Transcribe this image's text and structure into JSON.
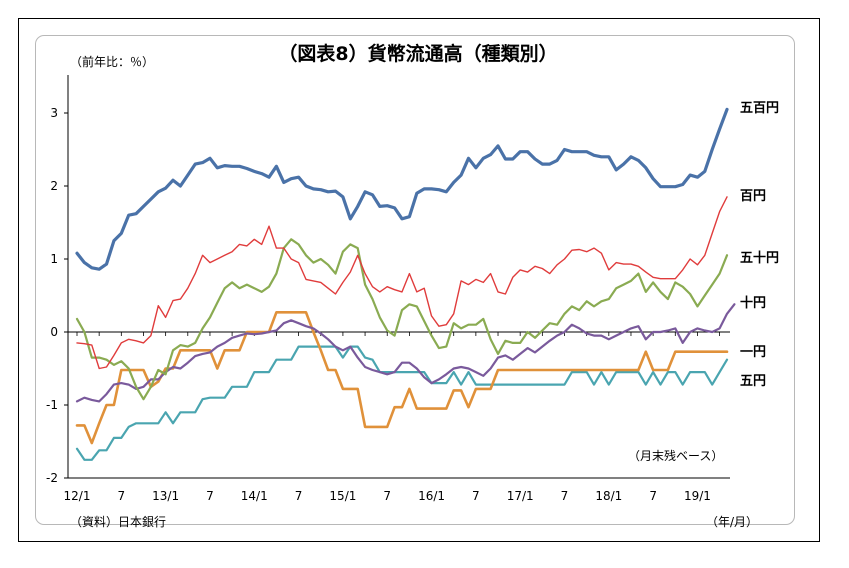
{
  "chart_data": {
    "type": "line",
    "title": "（図表8）貨幣流通高（種類別）",
    "ylabel": "（前年比：％）",
    "xlabel": "（年/月）",
    "note": "（月末残ベース）",
    "source": "（資料）日本銀行",
    "ylim": [
      -2,
      3.5
    ],
    "yticks": [
      "3",
      "2",
      "1",
      "0",
      "-1",
      "-2"
    ],
    "ytick_values": [
      3,
      2,
      1,
      0,
      -1,
      -2
    ],
    "xtick_labels": [
      "12/1",
      "7",
      "13/1",
      "7",
      "14/1",
      "7",
      "15/1",
      "7",
      "16/1",
      "7",
      "17/1",
      "7",
      "18/1",
      "7",
      "19/1"
    ],
    "xtick_months": [
      0,
      6,
      12,
      18,
      24,
      30,
      36,
      42,
      48,
      54,
      60,
      66,
      72,
      78,
      84
    ],
    "months": "2012/1 - 2019/3",
    "grid": false,
    "series": [
      {
        "name": "五百円",
        "color": "#4a72a8",
        "width": 3.2,
        "values": [
          1.08,
          0.95,
          0.88,
          0.86,
          0.93,
          1.25,
          1.35,
          1.6,
          1.62,
          1.72,
          1.82,
          1.92,
          1.97,
          2.08,
          2.0,
          2.15,
          2.3,
          2.32,
          2.38,
          2.25,
          2.28,
          2.27,
          2.27,
          2.24,
          2.2,
          2.17,
          2.12,
          2.27,
          2.05,
          2.1,
          2.12,
          2.0,
          1.96,
          1.95,
          1.92,
          1.93,
          1.85,
          1.55,
          1.72,
          1.92,
          1.88,
          1.72,
          1.73,
          1.7,
          1.55,
          1.58,
          1.9,
          1.96,
          1.96,
          1.95,
          1.92,
          2.05,
          2.15,
          2.38,
          2.25,
          2.38,
          2.43,
          2.55,
          2.37,
          2.37,
          2.47,
          2.47,
          2.37,
          2.3,
          2.3,
          2.35,
          2.5,
          2.47,
          2.47,
          2.47,
          2.42,
          2.4,
          2.4,
          2.22,
          2.3,
          2.4,
          2.35,
          2.25,
          2.1,
          1.99,
          1.99,
          1.99,
          2.02,
          2.15,
          2.12,
          2.2,
          2.5,
          2.78,
          3.05
        ]
      },
      {
        "name": "百円",
        "color": "#e03c3c",
        "width": 1.4,
        "values": [
          -0.15,
          -0.16,
          -0.18,
          -0.5,
          -0.48,
          -0.32,
          -0.15,
          -0.1,
          -0.12,
          -0.15,
          -0.05,
          0.36,
          0.2,
          0.43,
          0.45,
          0.6,
          0.8,
          1.05,
          0.95,
          1.0,
          1.05,
          1.1,
          1.2,
          1.18,
          1.27,
          1.2,
          1.45,
          1.15,
          1.15,
          1.0,
          0.95,
          0.72,
          0.7,
          0.68,
          0.6,
          0.52,
          0.68,
          0.82,
          1.05,
          0.8,
          0.62,
          0.55,
          0.62,
          0.58,
          0.55,
          0.8,
          0.55,
          0.6,
          0.22,
          0.08,
          0.1,
          0.25,
          0.7,
          0.65,
          0.72,
          0.68,
          0.8,
          0.55,
          0.52,
          0.75,
          0.85,
          0.82,
          0.9,
          0.87,
          0.8,
          0.92,
          1.0,
          1.12,
          1.13,
          1.1,
          1.15,
          1.08,
          0.85,
          0.95,
          0.93,
          0.93,
          0.9,
          0.82,
          0.75,
          0.73,
          0.73,
          0.73,
          0.85,
          1.0,
          0.92,
          1.05,
          1.35,
          1.65,
          1.85
        ]
      },
      {
        "name": "五十円",
        "color": "#8aab52",
        "width": 2.2,
        "values": [
          0.18,
          0.0,
          -0.35,
          -0.35,
          -0.38,
          -0.45,
          -0.4,
          -0.5,
          -0.75,
          -0.92,
          -0.75,
          -0.52,
          -0.58,
          -0.25,
          -0.18,
          -0.2,
          -0.15,
          0.05,
          0.2,
          0.4,
          0.6,
          0.68,
          0.6,
          0.65,
          0.6,
          0.55,
          0.62,
          0.8,
          1.15,
          1.27,
          1.2,
          1.05,
          0.95,
          1.0,
          0.92,
          0.8,
          1.1,
          1.2,
          1.15,
          0.65,
          0.45,
          0.2,
          0.02,
          -0.05,
          0.3,
          0.38,
          0.35,
          0.15,
          -0.05,
          -0.22,
          -0.2,
          0.12,
          0.05,
          0.1,
          0.1,
          0.18,
          -0.1,
          -0.3,
          -0.12,
          -0.15,
          -0.15,
          0.0,
          -0.08,
          0.02,
          0.12,
          0.1,
          0.25,
          0.35,
          0.3,
          0.42,
          0.35,
          0.42,
          0.45,
          0.6,
          0.65,
          0.7,
          0.8,
          0.55,
          0.68,
          0.55,
          0.45,
          0.68,
          0.62,
          0.52,
          0.35,
          0.5,
          0.65,
          0.8,
          1.05
        ]
      },
      {
        "name": "十円",
        "color": "#7a5a9c",
        "width": 2.2,
        "values": [
          -0.95,
          -0.9,
          -0.93,
          -0.95,
          -0.85,
          -0.72,
          -0.7,
          -0.72,
          -0.78,
          -0.75,
          -0.65,
          -0.65,
          -0.55,
          -0.48,
          -0.5,
          -0.42,
          -0.33,
          -0.3,
          -0.28,
          -0.2,
          -0.15,
          -0.08,
          -0.05,
          -0.02,
          -0.03,
          -0.02,
          0.0,
          0.02,
          0.12,
          0.16,
          0.12,
          0.08,
          0.05,
          -0.02,
          -0.1,
          -0.2,
          -0.25,
          -0.2,
          -0.35,
          -0.48,
          -0.52,
          -0.55,
          -0.58,
          -0.55,
          -0.42,
          -0.42,
          -0.5,
          -0.62,
          -0.7,
          -0.65,
          -0.58,
          -0.5,
          -0.48,
          -0.5,
          -0.55,
          -0.6,
          -0.5,
          -0.35,
          -0.32,
          -0.38,
          -0.3,
          -0.22,
          -0.28,
          -0.2,
          -0.12,
          -0.05,
          0.0,
          0.1,
          0.05,
          -0.02,
          -0.05,
          -0.05,
          -0.1,
          -0.05,
          0.0,
          0.05,
          0.08,
          -0.1,
          0.0,
          0.0,
          0.02,
          0.05,
          -0.15,
          0.0,
          0.05,
          0.02,
          0.0,
          0.05,
          0.25,
          0.38
        ]
      },
      {
        "name": "一円",
        "color": "#e0913a",
        "width": 2.6,
        "values": [
          -1.28,
          -1.28,
          -1.52,
          -1.25,
          -1.0,
          -1.0,
          -0.52,
          -0.52,
          -0.52,
          -0.52,
          -0.75,
          -0.68,
          -0.5,
          -0.5,
          -0.25,
          -0.25,
          -0.25,
          -0.25,
          -0.25,
          -0.5,
          -0.25,
          -0.25,
          -0.25,
          0.0,
          0.0,
          0.0,
          0.0,
          0.27,
          0.27,
          0.27,
          0.27,
          0.27,
          0.0,
          -0.25,
          -0.52,
          -0.52,
          -0.78,
          -0.78,
          -0.78,
          -1.3,
          -1.3,
          -1.3,
          -1.3,
          -1.03,
          -1.03,
          -0.78,
          -1.05,
          -1.05,
          -1.05,
          -1.05,
          -1.05,
          -0.8,
          -0.8,
          -1.03,
          -0.78,
          -0.78,
          -0.78,
          -0.52,
          -0.52,
          -0.52,
          -0.52,
          -0.52,
          -0.52,
          -0.52,
          -0.52,
          -0.52,
          -0.52,
          -0.52,
          -0.52,
          -0.52,
          -0.52,
          -0.52,
          -0.52,
          -0.52,
          -0.52,
          -0.52,
          -0.52,
          -0.27,
          -0.52,
          -0.52,
          -0.52,
          -0.27,
          -0.27,
          -0.27,
          -0.27,
          -0.27,
          -0.27,
          -0.27,
          -0.27
        ]
      },
      {
        "name": "五円",
        "color": "#4aa5b0",
        "width": 2.2,
        "values": [
          -1.6,
          -1.75,
          -1.75,
          -1.62,
          -1.62,
          -1.45,
          -1.45,
          -1.3,
          -1.25,
          -1.25,
          -1.25,
          -1.25,
          -1.1,
          -1.25,
          -1.1,
          -1.1,
          -1.1,
          -0.92,
          -0.9,
          -0.9,
          -0.9,
          -0.75,
          -0.75,
          -0.75,
          -0.55,
          -0.55,
          -0.55,
          -0.38,
          -0.38,
          -0.38,
          -0.2,
          -0.2,
          -0.2,
          -0.2,
          -0.2,
          -0.2,
          -0.35,
          -0.2,
          -0.2,
          -0.35,
          -0.38,
          -0.55,
          -0.55,
          -0.55,
          -0.55,
          -0.55,
          -0.55,
          -0.55,
          -0.7,
          -0.7,
          -0.7,
          -0.55,
          -0.72,
          -0.55,
          -0.72,
          -0.72,
          -0.72,
          -0.72,
          -0.72,
          -0.72,
          -0.72,
          -0.72,
          -0.72,
          -0.72,
          -0.72,
          -0.72,
          -0.72,
          -0.55,
          -0.55,
          -0.55,
          -0.72,
          -0.55,
          -0.72,
          -0.55,
          -0.55,
          -0.55,
          -0.55,
          -0.72,
          -0.55,
          -0.72,
          -0.55,
          -0.55,
          -0.72,
          -0.55,
          -0.55,
          -0.55,
          -0.72,
          -0.55,
          -0.38
        ]
      }
    ],
    "series_labels": [
      "五百円",
      "百円",
      "五十円",
      "十円",
      "一円",
      "五円"
    ]
  }
}
